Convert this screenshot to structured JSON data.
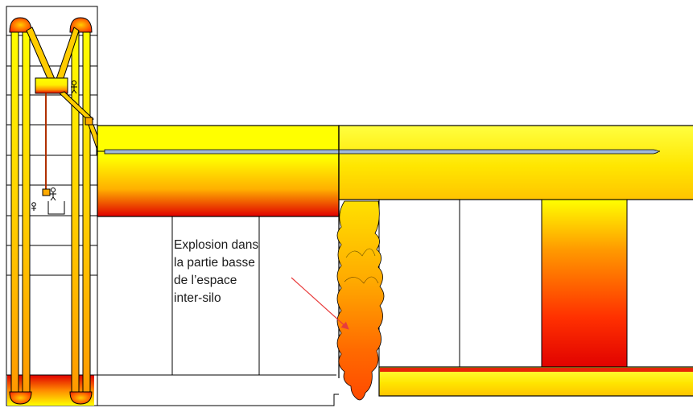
{
  "annotation": {
    "lines": [
      "Explosion dans",
      "la partie basse",
      "de l’espace",
      "inter-silo"
    ]
  },
  "colors": {
    "hot_yellow": "#ffff00",
    "mid_orange": "#ff9900",
    "hot_red": "#e00000",
    "fire_orange": "#ff7a00",
    "outline": "#000000",
    "arrow": "#e83c3c",
    "pipe": "#9fb8d8"
  },
  "icons": [
    "worker-figure-icon",
    "explosion-flame-icon",
    "pointer-arrow-icon"
  ]
}
